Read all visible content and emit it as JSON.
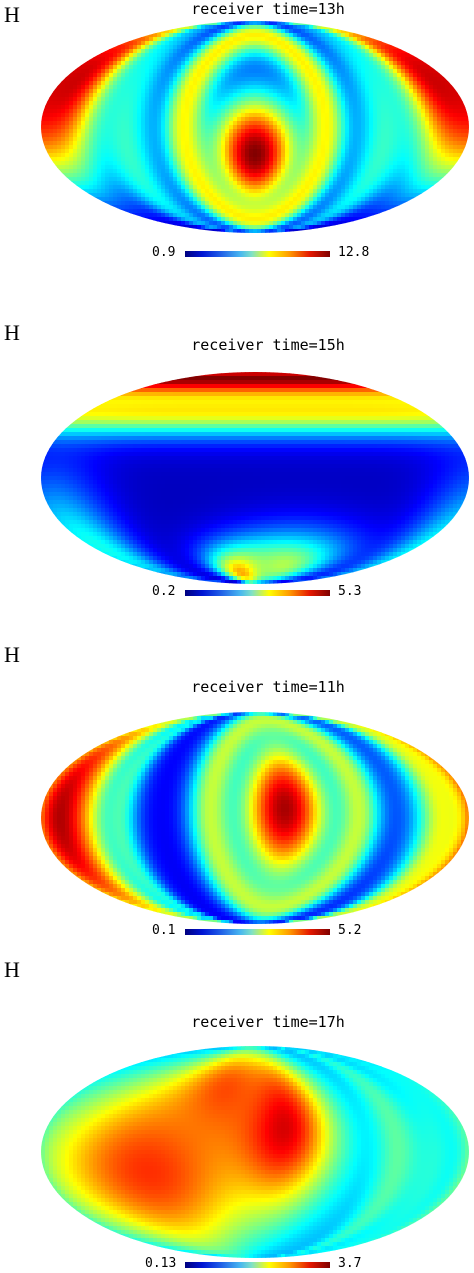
{
  "chart_data": [
    {
      "type": "heatmap",
      "projection": "mollweide",
      "panel_label": "H",
      "title": "receiver time=13h",
      "colorscale": {
        "min_label": "0.9",
        "max_label": "12.8",
        "min": 0.9,
        "max": 12.8
      },
      "colormap": "jet",
      "features": [
        {
          "kind": "peak",
          "lon": 0,
          "lat": -15,
          "value": 12.8,
          "spread_lon": 28,
          "spread_lat": 24
        },
        {
          "kind": "peak",
          "lon": -165,
          "lat": 25,
          "value": 12.0,
          "spread_lon": 30,
          "spread_lat": 35
        },
        {
          "kind": "peak",
          "lon": 165,
          "lat": 25,
          "value": 12.0,
          "spread_lon": 30,
          "spread_lat": 35
        },
        {
          "kind": "ring",
          "lon": 0,
          "lat": 0,
          "radius": 60,
          "width": 14,
          "value": 8.5
        },
        {
          "kind": "peak",
          "lon": -110,
          "lat": -10,
          "value": 6.0,
          "spread_lon": 20,
          "spread_lat": 60
        },
        {
          "kind": "peak",
          "lon": 110,
          "lat": -10,
          "value": 6.0,
          "spread_lon": 20,
          "spread_lat": 60
        }
      ],
      "background_value": 1.5
    },
    {
      "type": "heatmap",
      "projection": "mollweide",
      "panel_label": "H",
      "title": "receiver time=15h",
      "colorscale": {
        "min_label": "0.2",
        "max_label": "5.3",
        "min": 0.2,
        "max": 5.3
      },
      "colormap": "jet",
      "features": [
        {
          "kind": "band",
          "lat": 70,
          "width": 22,
          "value": 5.3
        },
        {
          "kind": "band",
          "lat": 40,
          "width": 10,
          "value": 3.5
        },
        {
          "kind": "peak",
          "lon": -20,
          "lat": -62,
          "value": 4.4,
          "spread_lon": 30,
          "spread_lat": 14
        },
        {
          "kind": "peak",
          "lon": 40,
          "lat": -55,
          "value": 3.0,
          "spread_lon": 50,
          "spread_lat": 18
        },
        {
          "kind": "peak",
          "lon": -170,
          "lat": -40,
          "value": 2.2,
          "spread_lon": 30,
          "spread_lat": 30
        }
      ],
      "background_value": 0.5
    },
    {
      "type": "heatmap",
      "projection": "mollweide",
      "panel_label": "H",
      "title": "receiver time=11h",
      "colorscale": {
        "min_label": "0.1",
        "max_label": "5.2",
        "min": 0.1,
        "max": 5.2
      },
      "colormap": "jet",
      "features": [
        {
          "kind": "peak",
          "lon": 25,
          "lat": 5,
          "value": 5.0,
          "spread_lon": 28,
          "spread_lat": 30
        },
        {
          "kind": "peak",
          "lon": -170,
          "lat": 0,
          "value": 5.2,
          "spread_lon": 32,
          "spread_lat": 60
        },
        {
          "kind": "ring",
          "lon": 25,
          "lat": 5,
          "radius": 62,
          "width": 14,
          "value": 3.0
        },
        {
          "kind": "peak",
          "lon": 165,
          "lat": 0,
          "value": 3.2,
          "spread_lon": 14,
          "spread_lat": 60
        },
        {
          "kind": "peak",
          "lon": -115,
          "lat": 0,
          "value": 2.4,
          "spread_lon": 10,
          "spread_lat": 70
        }
      ],
      "background_value": 0.6
    },
    {
      "type": "heatmap",
      "projection": "mollweide",
      "panel_label": "H",
      "title": "receiver time=17h",
      "colorscale": {
        "min_label": "0.13",
        "max_label": "3.7",
        "min": 0.13,
        "max": 3.7
      },
      "colormap": "jet",
      "features": [
        {
          "kind": "peak",
          "lon": 20,
          "lat": 15,
          "value": 3.7,
          "spread_lon": 30,
          "spread_lat": 28
        },
        {
          "kind": "peak",
          "lon": -90,
          "lat": -10,
          "value": 3.1,
          "spread_lon": 70,
          "spread_lat": 40
        },
        {
          "kind": "peak",
          "lon": -30,
          "lat": 35,
          "value": 3.0,
          "spread_lon": 40,
          "spread_lat": 25
        },
        {
          "kind": "peak",
          "lon": 120,
          "lat": 0,
          "value": 1.8,
          "spread_lon": 12,
          "spread_lat": 60
        },
        {
          "kind": "peak",
          "lon": 165,
          "lat": 0,
          "value": 1.5,
          "spread_lon": 10,
          "spread_lat": 60
        }
      ],
      "background_value": 1.2
    }
  ]
}
